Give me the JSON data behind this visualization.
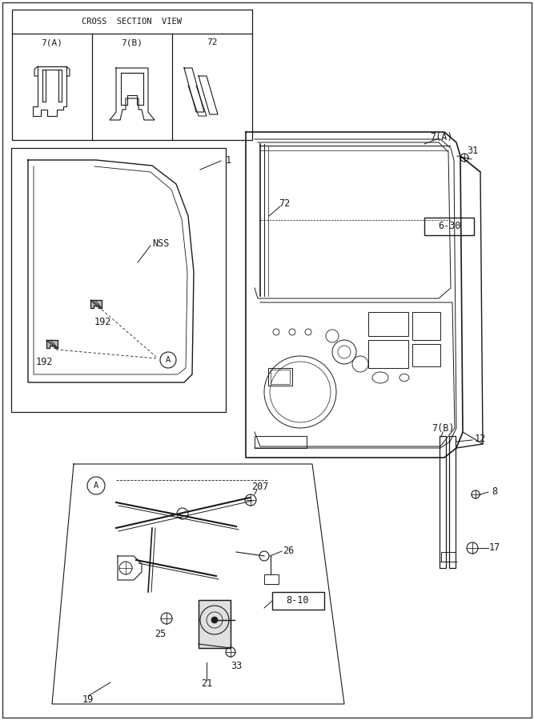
{
  "bg_color": "#ffffff",
  "line_color": "#1a1a1a",
  "fig_width": 6.67,
  "fig_height": 9.0,
  "font_size": 8.5,
  "lw": 0.9,
  "labels": {
    "cross_section_title": "CROSS  SECTION  VIEW",
    "7A": "7(A)",
    "7B": "7(B)",
    "72": "72",
    "1": "1",
    "NSS": "NSS",
    "192": "192",
    "A": "A",
    "31": "31",
    "6_30": "6-30",
    "207": "207",
    "26": "26",
    "8_10": "8-10",
    "25": "25",
    "21": "21",
    "33": "33",
    "19": "19",
    "12": "12",
    "8": "8",
    "17": "17"
  }
}
